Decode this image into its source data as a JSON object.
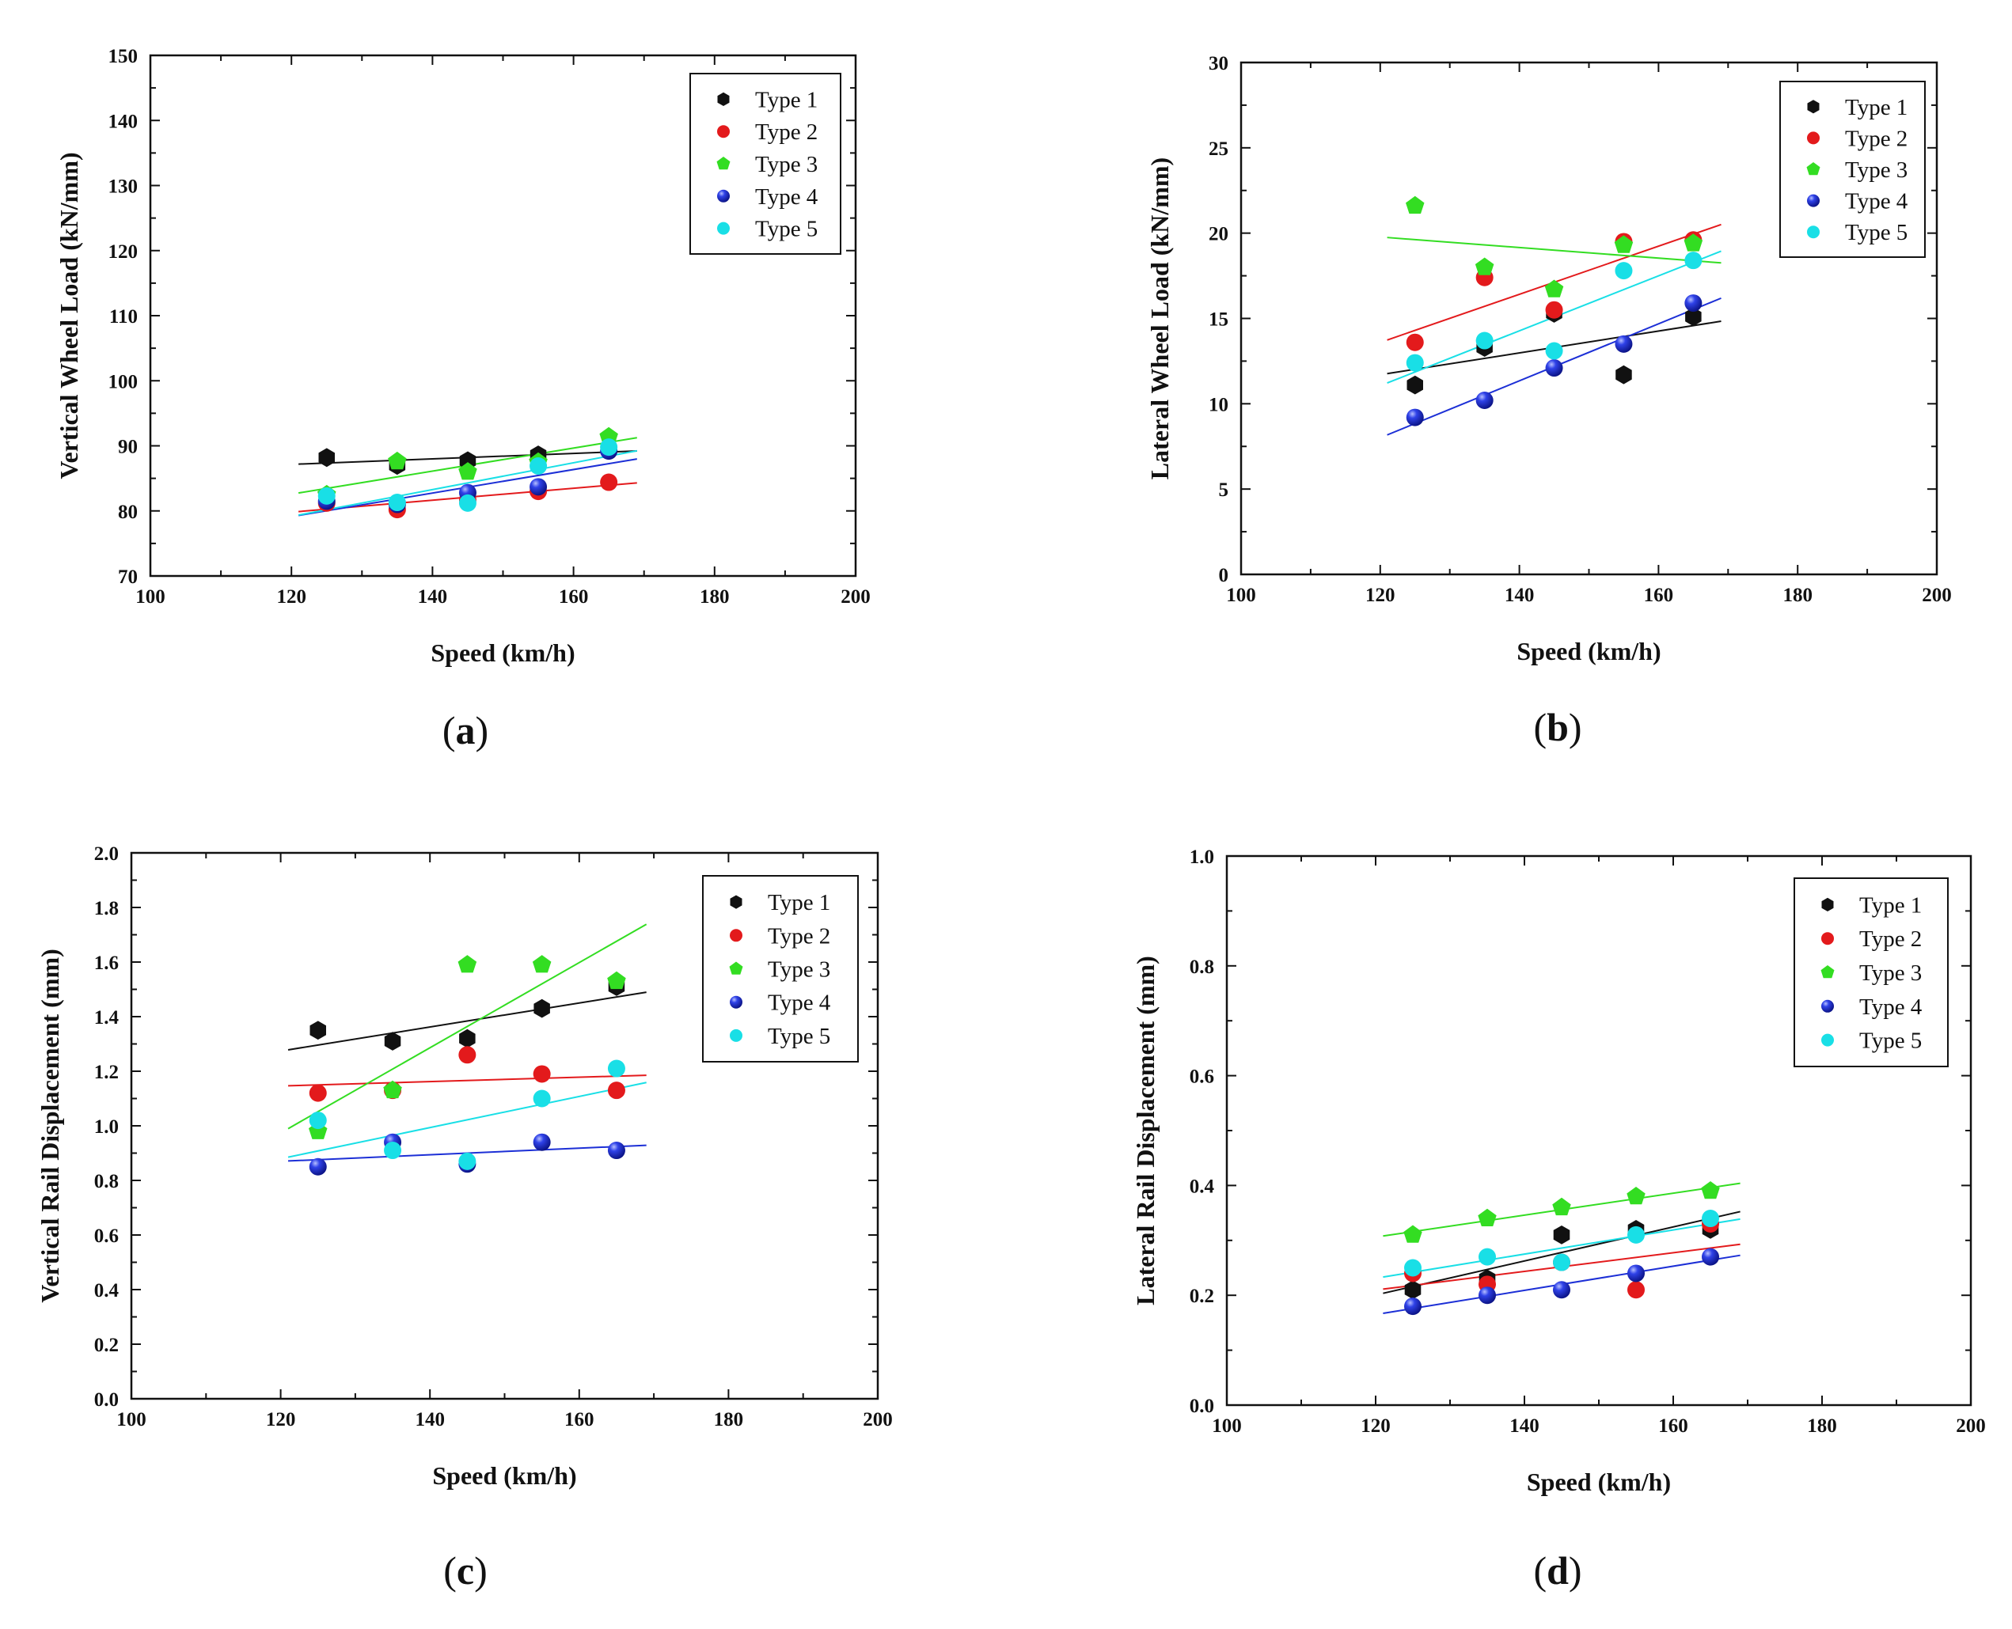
{
  "chart_data": [
    {
      "id": "a",
      "type": "scatter",
      "caption": "a",
      "xlabel": "Speed (km/h)",
      "ylabel": "Vertical Wheel Load (kN/mm)",
      "xlim": [
        100,
        200
      ],
      "ylim": [
        70,
        150
      ],
      "xticks": [
        100,
        120,
        140,
        160,
        180,
        200
      ],
      "yticks": [
        70,
        80,
        90,
        100,
        110,
        120,
        130,
        140,
        150
      ],
      "fit_x_range": [
        121,
        169
      ],
      "legend_position": "top-right",
      "x": [
        125,
        135,
        145,
        155,
        165
      ],
      "series": [
        {
          "name": "Type 1",
          "color": "#111111",
          "marker": "hexagon",
          "values": [
            88.2,
            87.0,
            87.7,
            88.6,
            89.5
          ]
        },
        {
          "name": "Type 2",
          "color": "#e31a1c",
          "marker": "circle",
          "values": [
            81.2,
            80.2,
            81.7,
            83.0,
            84.4
          ]
        },
        {
          "name": "Type 3",
          "color": "#33dd22",
          "marker": "pentagon",
          "values": [
            82.5,
            87.6,
            86.0,
            87.5,
            91.4
          ]
        },
        {
          "name": "Type 4",
          "color": "#1c2fd6",
          "marker": "sphere",
          "values": [
            81.5,
            81.0,
            82.8,
            83.7,
            89.2
          ]
        },
        {
          "name": "Type 5",
          "color": "#19dfe6",
          "marker": "circle",
          "values": [
            82.3,
            81.3,
            81.2,
            86.9,
            89.8
          ]
        }
      ]
    },
    {
      "id": "b",
      "type": "scatter",
      "caption": "b",
      "xlabel": "Speed (km/h)",
      "ylabel": "Lateral Wheel Load (kN/mm)",
      "xlim": [
        100,
        200
      ],
      "ylim": [
        0,
        30
      ],
      "xticks": [
        100,
        120,
        140,
        160,
        180,
        200
      ],
      "yticks": [
        0,
        5,
        10,
        15,
        20,
        25,
        30
      ],
      "fit_x_range": [
        121,
        169
      ],
      "legend_position": "top-right",
      "x": [
        125,
        135,
        145,
        155,
        165
      ],
      "series": [
        {
          "name": "Type 1",
          "color": "#111111",
          "marker": "hexagon",
          "values": [
            11.1,
            13.3,
            15.3,
            11.7,
            15.1
          ]
        },
        {
          "name": "Type 2",
          "color": "#e31a1c",
          "marker": "circle",
          "values": [
            13.6,
            17.4,
            15.5,
            19.5,
            19.6
          ]
        },
        {
          "name": "Type 3",
          "color": "#33dd22",
          "marker": "pentagon",
          "values": [
            21.6,
            18.0,
            16.7,
            19.3,
            19.4
          ]
        },
        {
          "name": "Type 4",
          "color": "#1c2fd6",
          "marker": "sphere",
          "values": [
            9.2,
            10.2,
            12.1,
            13.5,
            15.9
          ]
        },
        {
          "name": "Type 5",
          "color": "#19dfe6",
          "marker": "circle",
          "values": [
            12.4,
            13.7,
            13.1,
            17.8,
            18.4
          ]
        }
      ]
    },
    {
      "id": "c",
      "type": "scatter",
      "caption": "c",
      "xlabel": "Speed (km/h)",
      "ylabel": "Vertical Rail Displacement (mm)",
      "xlim": [
        100,
        200
      ],
      "ylim": [
        0,
        2.0
      ],
      "xticks": [
        100,
        120,
        140,
        160,
        180,
        200
      ],
      "yticks": [
        0.0,
        0.2,
        0.4,
        0.6,
        0.8,
        1.0,
        1.2,
        1.4,
        1.6,
        1.8,
        2.0
      ],
      "fit_x_range": [
        121,
        169
      ],
      "legend_position": "top-right",
      "x": [
        125,
        135,
        145,
        155,
        165
      ],
      "series": [
        {
          "name": "Type 1",
          "color": "#111111",
          "marker": "hexagon",
          "values": [
            1.35,
            1.31,
            1.32,
            1.43,
            1.51
          ]
        },
        {
          "name": "Type 2",
          "color": "#e31a1c",
          "marker": "circle",
          "values": [
            1.12,
            1.13,
            1.26,
            1.19,
            1.13
          ]
        },
        {
          "name": "Type 3",
          "color": "#33dd22",
          "marker": "pentagon",
          "values": [
            0.98,
            1.13,
            1.59,
            1.59,
            1.53
          ]
        },
        {
          "name": "Type 4",
          "color": "#1c2fd6",
          "marker": "sphere",
          "values": [
            0.85,
            0.94,
            0.86,
            0.94,
            0.91
          ]
        },
        {
          "name": "Type 5",
          "color": "#19dfe6",
          "marker": "circle",
          "values": [
            1.02,
            0.91,
            0.87,
            1.1,
            1.21
          ]
        }
      ]
    },
    {
      "id": "d",
      "type": "scatter",
      "caption": "d",
      "xlabel": "Speed (km/h)",
      "ylabel": "Lateral Rail Displacement (mm)",
      "xlim": [
        100,
        200
      ],
      "ylim": [
        0,
        1.0
      ],
      "xticks": [
        100,
        120,
        140,
        160,
        180,
        200
      ],
      "yticks": [
        0.0,
        0.2,
        0.4,
        0.6,
        0.8,
        1.0
      ],
      "fit_x_range": [
        121,
        169
      ],
      "legend_position": "top-right",
      "x": [
        125,
        135,
        145,
        155,
        165
      ],
      "series": [
        {
          "name": "Type 1",
          "color": "#111111",
          "marker": "hexagon",
          "values": [
            0.21,
            0.23,
            0.31,
            0.32,
            0.32
          ]
        },
        {
          "name": "Type 2",
          "color": "#e31a1c",
          "marker": "circle",
          "values": [
            0.24,
            0.22,
            0.26,
            0.21,
            0.33
          ]
        },
        {
          "name": "Type 3",
          "color": "#33dd22",
          "marker": "pentagon",
          "values": [
            0.31,
            0.34,
            0.36,
            0.38,
            0.39
          ]
        },
        {
          "name": "Type 4",
          "color": "#1c2fd6",
          "marker": "sphere",
          "values": [
            0.18,
            0.2,
            0.21,
            0.24,
            0.27
          ]
        },
        {
          "name": "Type 5",
          "color": "#19dfe6",
          "marker": "circle",
          "values": [
            0.25,
            0.27,
            0.26,
            0.31,
            0.34
          ]
        }
      ]
    }
  ]
}
